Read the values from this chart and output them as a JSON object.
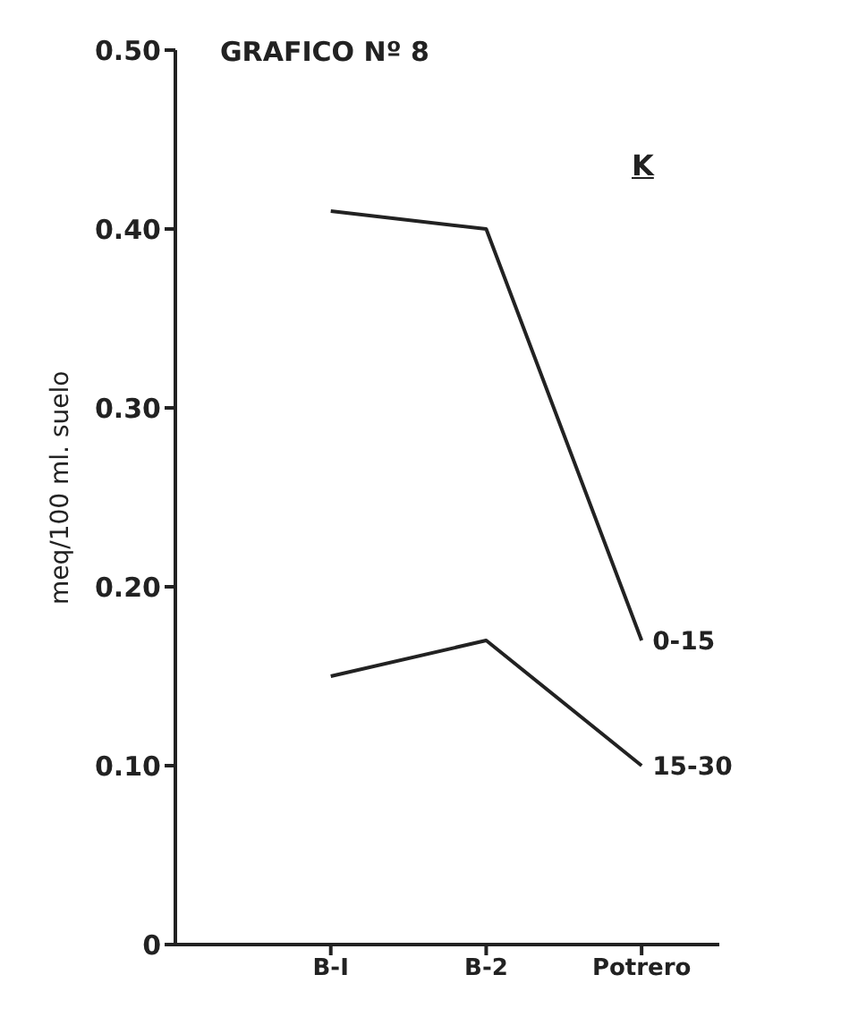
{
  "chart_data": {
    "type": "line",
    "title": "GRAFICO Nº 8",
    "ylabel": "meq/100 ml. suelo",
    "annotations": [
      "K"
    ],
    "categories": [
      "B-I",
      "B-2",
      "Potrero"
    ],
    "series": [
      {
        "name": "0-15",
        "color": "#222222",
        "values": [
          0.41,
          0.4,
          0.17
        ]
      },
      {
        "name": "15-30",
        "color": "#222222",
        "values": [
          0.15,
          0.17,
          0.1
        ]
      }
    ],
    "ylim": [
      0,
      0.5
    ],
    "yticks": [
      {
        "value": 0,
        "label": "0"
      },
      {
        "value": 0.1,
        "label": "0.10"
      },
      {
        "value": 0.2,
        "label": "0.20"
      },
      {
        "value": 0.3,
        "label": "0.30"
      },
      {
        "value": 0.4,
        "label": "0.40"
      },
      {
        "value": 0.5,
        "label": "0.50"
      }
    ],
    "grid": false,
    "legend": false,
    "marker": "none",
    "line_style": "solid"
  }
}
